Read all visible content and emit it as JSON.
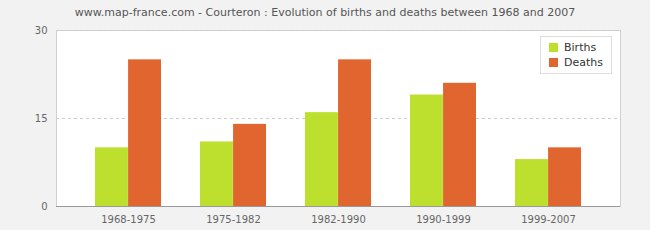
{
  "chart_data": {
    "type": "bar",
    "title": "www.map-france.com - Courteron : Evolution of births and deaths between 1968 and 2007",
    "categories": [
      "1968-1975",
      "1975-1982",
      "1982-1990",
      "1990-1999",
      "1999-2007"
    ],
    "series": [
      {
        "name": "Births",
        "color": "#bce02d",
        "values": [
          10,
          11,
          16,
          19,
          8
        ]
      },
      {
        "name": "Deaths",
        "color": "#e0652f",
        "values": [
          25,
          14,
          25,
          21,
          10
        ]
      }
    ],
    "ylim": [
      0,
      30
    ],
    "yticks": [
      0,
      15,
      30
    ],
    "grid": true,
    "legend": "top-right"
  }
}
